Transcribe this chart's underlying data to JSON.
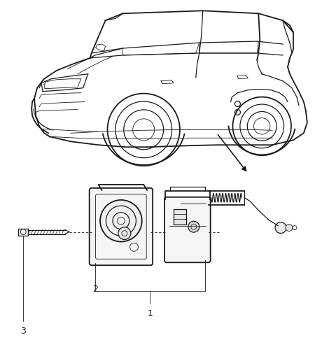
{
  "bg_color": "#ffffff",
  "line_color": "#1a1a1a",
  "fig_width": 4.8,
  "fig_height": 4.99,
  "dpi": 100,
  "label1_text": "1",
  "label2_text": "2",
  "label3_text": "3"
}
